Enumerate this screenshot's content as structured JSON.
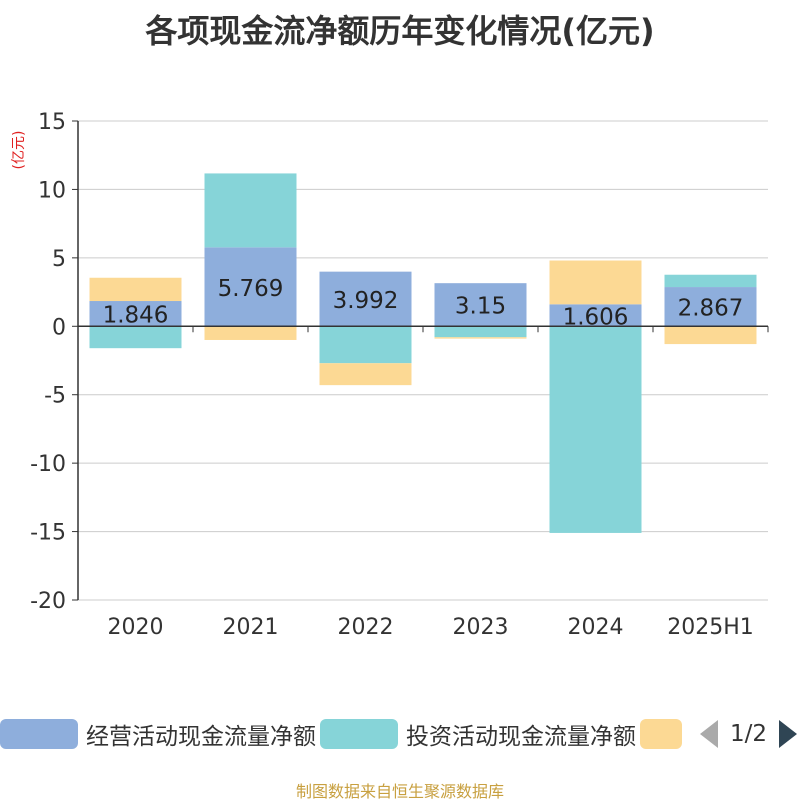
{
  "title": "各项现金流净额历年变化情况(亿元)",
  "unit_label": "(亿元)",
  "source": "制图数据来自恒生聚源数据库",
  "legend": {
    "items": [
      {
        "label": "经营活动现金流量净额",
        "color": "#8eaedc"
      },
      {
        "label": "投资活动现金流量净额",
        "color": "#86d4d8"
      },
      {
        "label": "",
        "color": "#fcd994"
      }
    ],
    "page": "1/2"
  },
  "chart_data": {
    "type": "bar",
    "stacked": true,
    "categories": [
      "2020",
      "2021",
      "2022",
      "2023",
      "2024",
      "2025H1"
    ],
    "ylim": [
      -20,
      15
    ],
    "yticks": [
      15,
      10,
      5,
      0,
      -5,
      -10,
      -15,
      -20
    ],
    "grid": true,
    "legend_position": "bottom",
    "series": [
      {
        "name": "经营活动现金流量净额",
        "color": "#8eaedc",
        "values": [
          1.846,
          5.769,
          3.992,
          3.15,
          1.606,
          2.867
        ],
        "labels": [
          "1.846",
          "5.769",
          "3.992",
          "3.15",
          "1.606",
          "2.867"
        ]
      },
      {
        "name": "投资活动现金流量净额",
        "color": "#86d4d8",
        "values": [
          -1.6,
          5.4,
          -2.7,
          -0.8,
          -15.1,
          0.9
        ]
      },
      {
        "name": "",
        "color": "#fcd994",
        "values": [
          1.7,
          -1.0,
          -1.6,
          -0.1,
          3.2,
          -1.3
        ]
      }
    ]
  }
}
